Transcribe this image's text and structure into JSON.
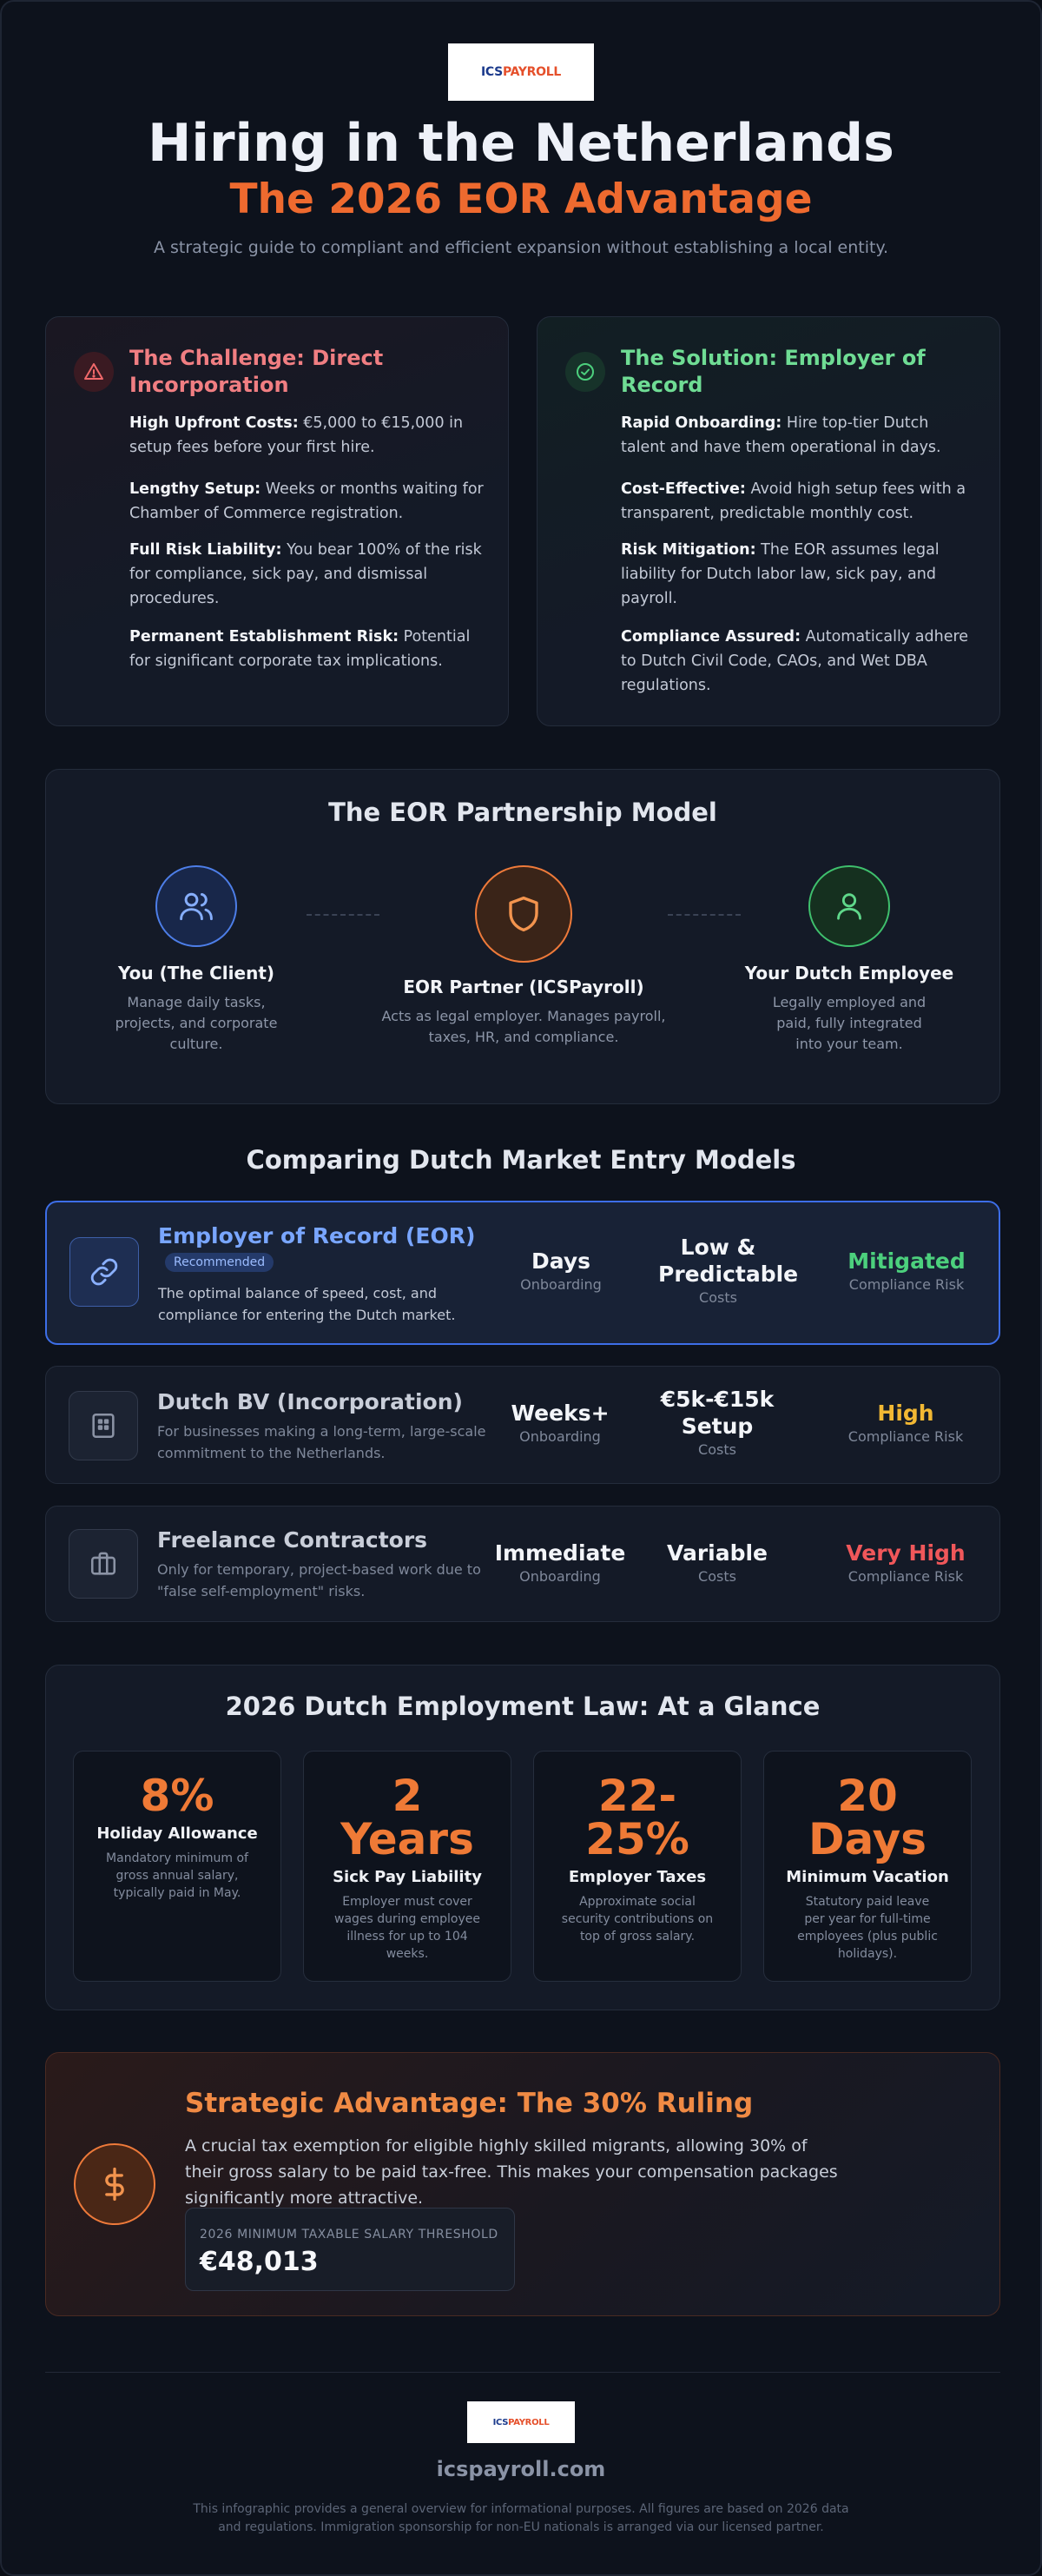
{
  "brand": {
    "logo_part1": "ICS",
    "logo_part2": "PAYROLL"
  },
  "header": {
    "title": "Hiring in the Netherlands",
    "subtitle": "The 2026 EOR Advantage",
    "tagline": "A strategic guide to compliant and efficient expansion without establishing a local entity."
  },
  "challenge": {
    "heading": "The Challenge: Direct Incorporation",
    "points": [
      {
        "bold": "High Upfront Costs:",
        "text": " €5,000 to €15,000 in setup fees before your first hire."
      },
      {
        "bold": "Lengthy Setup:",
        "text": " Weeks or months waiting for Chamber of Commerce registration."
      },
      {
        "bold": "Full Risk Liability:",
        "text": " You bear 100% of the risk for compliance, sick pay, and dismissal procedures."
      },
      {
        "bold": "Permanent Establishment Risk:",
        "text": " Potential for significant corporate tax implications."
      }
    ]
  },
  "solution": {
    "heading": "The Solution: Employer of Record",
    "points": [
      {
        "bold": "Rapid Onboarding:",
        "text": " Hire top-tier Dutch talent and have them operational in days."
      },
      {
        "bold": "Cost-Effective:",
        "text": " Avoid high setup fees with a transparent, predictable monthly cost."
      },
      {
        "bold": "Risk Mitigation:",
        "text": " The EOR assumes legal liability for Dutch labor law, sick pay, and payroll."
      },
      {
        "bold": "Compliance Assured:",
        "text": " Automatically adhere to Dutch Civil Code, CAOs, and Wet DBA regulations."
      }
    ]
  },
  "partnership": {
    "heading": "The EOR Partnership Model",
    "nodes": [
      {
        "label": "You (The Client)",
        "desc": "Manage daily tasks, projects, and corporate culture."
      },
      {
        "label": "EOR Partner (ICSPayroll)",
        "desc": "Acts as legal employer. Manages payroll, taxes, HR, and compliance."
      },
      {
        "label": "Your Dutch Employee",
        "desc": "Legally employed and paid, fully integrated into your team."
      }
    ]
  },
  "comparison": {
    "heading": "Comparing Dutch Market Entry Models",
    "rows": [
      {
        "title": "Employer of Record (EOR)",
        "badge": "Recommended",
        "desc": "The optimal balance of speed, cost, and compliance for entering the Dutch market.",
        "onboarding": "Days",
        "onboarding_label": "Onboarding",
        "costs": "Low & Predictable",
        "costs_label": "Costs",
        "risk": "Mitigated",
        "risk_label": "Compliance Risk",
        "risk_color": "#4cd07d"
      },
      {
        "title": "Dutch BV (Incorporation)",
        "desc": "For businesses making a long-term, large-scale commitment to the Netherlands.",
        "onboarding": "Weeks+",
        "onboarding_label": "Onboarding",
        "costs": "€5k-€15k Setup",
        "costs_label": "Costs",
        "risk": "High",
        "risk_label": "Compliance Risk",
        "risk_color": "#f2b833"
      },
      {
        "title": "Freelance Contractors",
        "desc": "Only for temporary, project-based work due to \"false self-employment\" risks.",
        "onboarding": "Immediate",
        "onboarding_label": "Onboarding",
        "costs": "Variable",
        "costs_label": "Costs",
        "risk": "Very High",
        "risk_label": "Compliance Risk",
        "risk_color": "#f0575a"
      }
    ]
  },
  "law": {
    "heading": "2026 Dutch Employment Law: At a Glance",
    "stats": [
      {
        "value": "8%",
        "name": "Holiday Allowance",
        "desc": "Mandatory minimum of gross annual salary, typically paid in May."
      },
      {
        "value": "2 Years",
        "name": "Sick Pay Liability",
        "desc": "Employer must cover wages during employee illness for up to 104 weeks."
      },
      {
        "value": "22-25%",
        "name": "Employer Taxes",
        "desc": "Approximate social security contributions on top of gross salary."
      },
      {
        "value": "20 Days",
        "name": "Minimum Vacation",
        "desc": "Statutory paid leave per year for full-time employees (plus public holidays)."
      }
    ]
  },
  "ruling": {
    "heading": "Strategic Advantage: The 30% Ruling",
    "text": "A crucial tax exemption for eligible highly skilled migrants, allowing 30% of their gross salary to be paid tax-free. This makes your compensation packages significantly more attractive.",
    "threshold_caption": "2026 MINIMUM TAXABLE SALARY THRESHOLD",
    "threshold_value": "€48,013"
  },
  "footer": {
    "url": "icspayroll.com",
    "note_line1": "This infographic provides a general overview for informational purposes. All figures are based on 2026 data",
    "note_line2": "and regulations. Immigration sponsorship for non-EU nationals is arranged via our licensed partner."
  }
}
